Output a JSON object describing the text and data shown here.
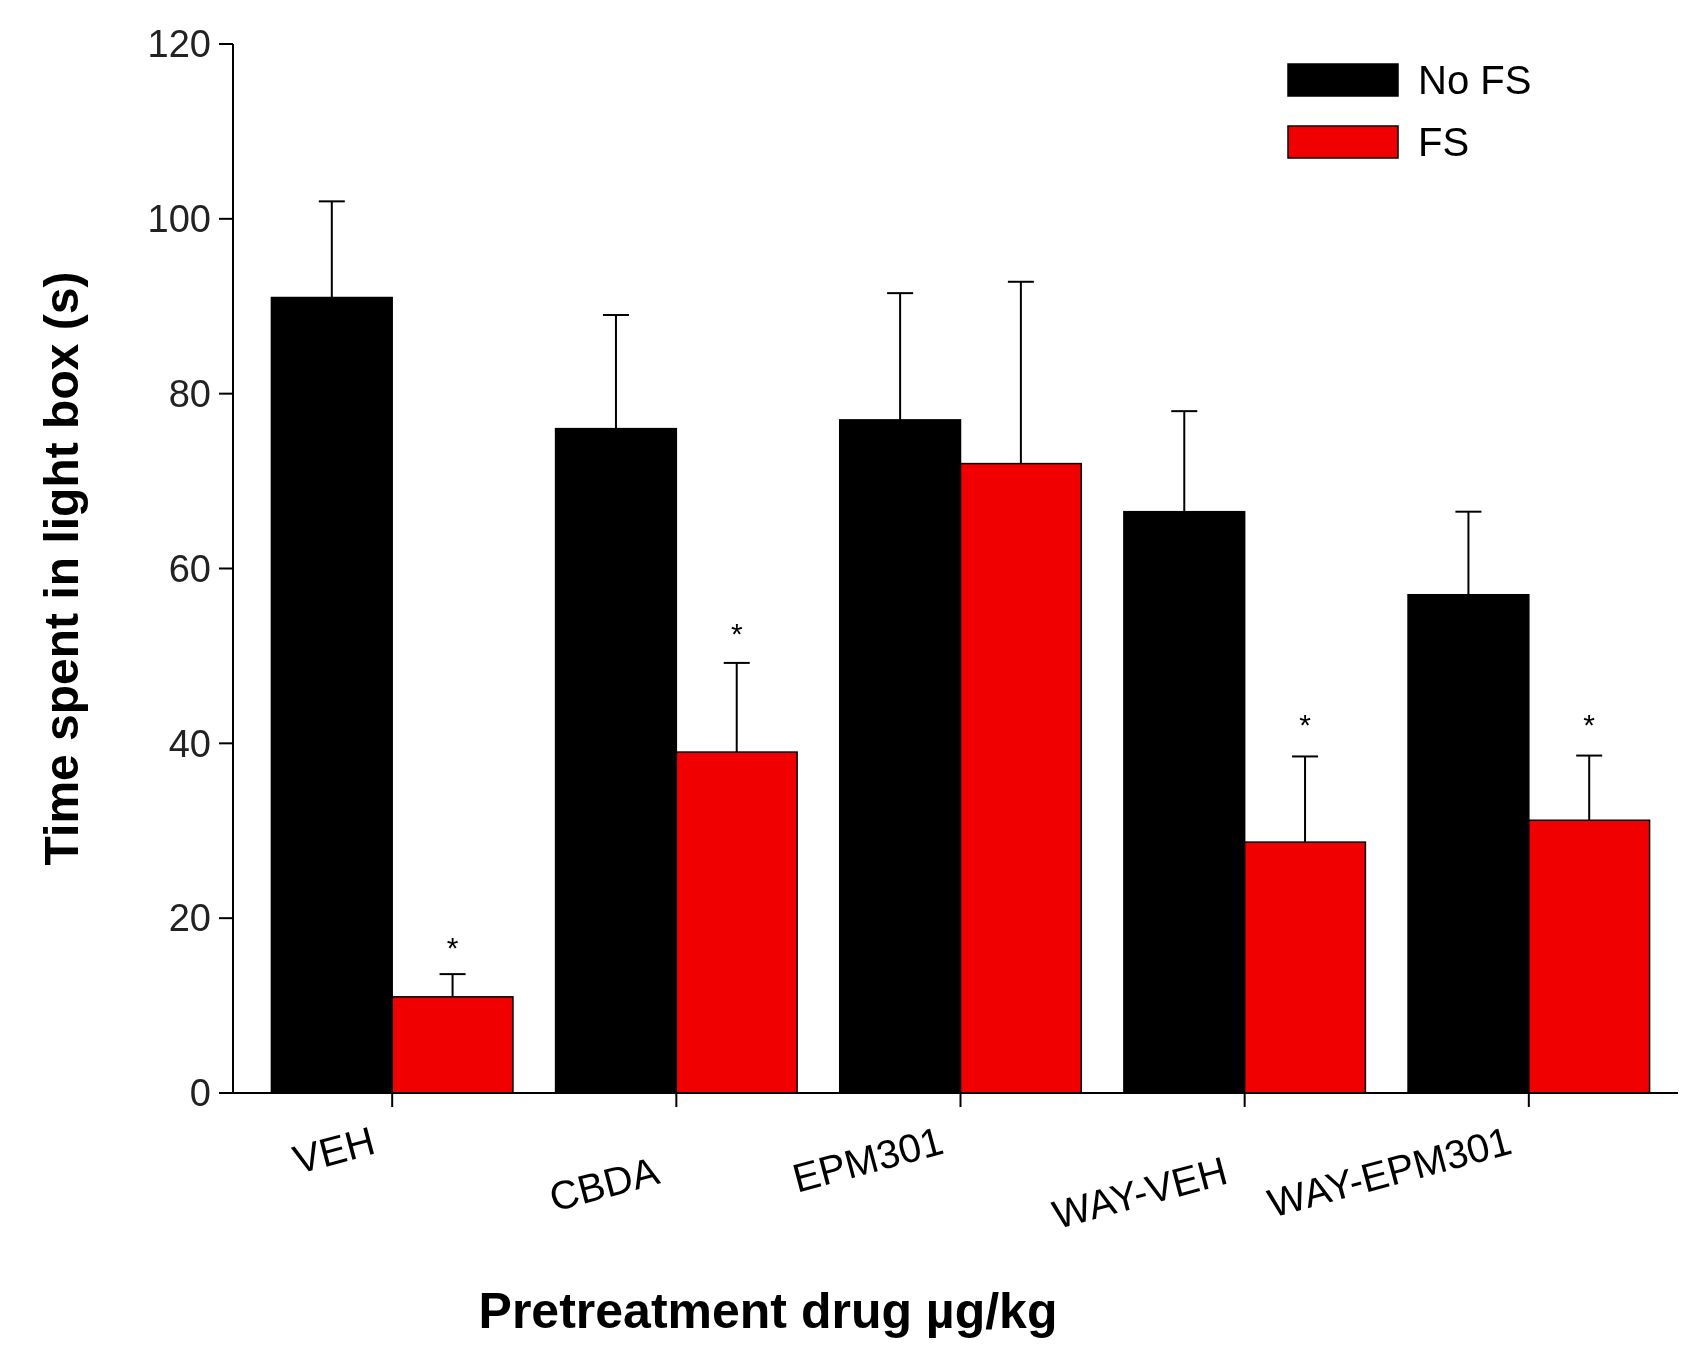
{
  "chart_data": {
    "type": "bar",
    "xlabel": "Pretreatment drug µg/kg",
    "ylabel": "Time spent in light box (s)",
    "categories": [
      "VEH",
      "CBDA",
      "EPM301",
      "WAY-VEH",
      "WAY-EPM301"
    ],
    "series": [
      {
        "name": "No FS",
        "color": "#000000",
        "values": [
          91,
          76,
          77,
          66.5,
          57
        ],
        "errors": [
          [
            91,
            102
          ],
          [
            76,
            89
          ],
          [
            77,
            91.5
          ],
          [
            66.5,
            78
          ],
          [
            57,
            66.5
          ]
        ]
      },
      {
        "name": "FS",
        "color": "#f00000",
        "values": [
          11,
          39,
          72,
          28.7,
          31.2
        ],
        "errors": [
          [
            11,
            13.6
          ],
          [
            39,
            49.2
          ],
          [
            72,
            92.8
          ],
          [
            28.7,
            38.5
          ],
          [
            31.2,
            38.6
          ]
        ]
      }
    ],
    "ylim": [
      0,
      120
    ],
    "yticks": [
      0,
      20,
      40,
      60,
      80,
      100,
      120
    ],
    "legend": "top right",
    "annotations": [
      {
        "text": "*",
        "x": "VEH",
        "y": 17
      },
      {
        "text": "*",
        "x": "CBDA",
        "y": 53
      },
      {
        "text": "*",
        "x": "WAY-VEH",
        "y": 42.5
      },
      {
        "text": "*",
        "x": "WAY-EPM301",
        "y": 42.5
      }
    ]
  }
}
